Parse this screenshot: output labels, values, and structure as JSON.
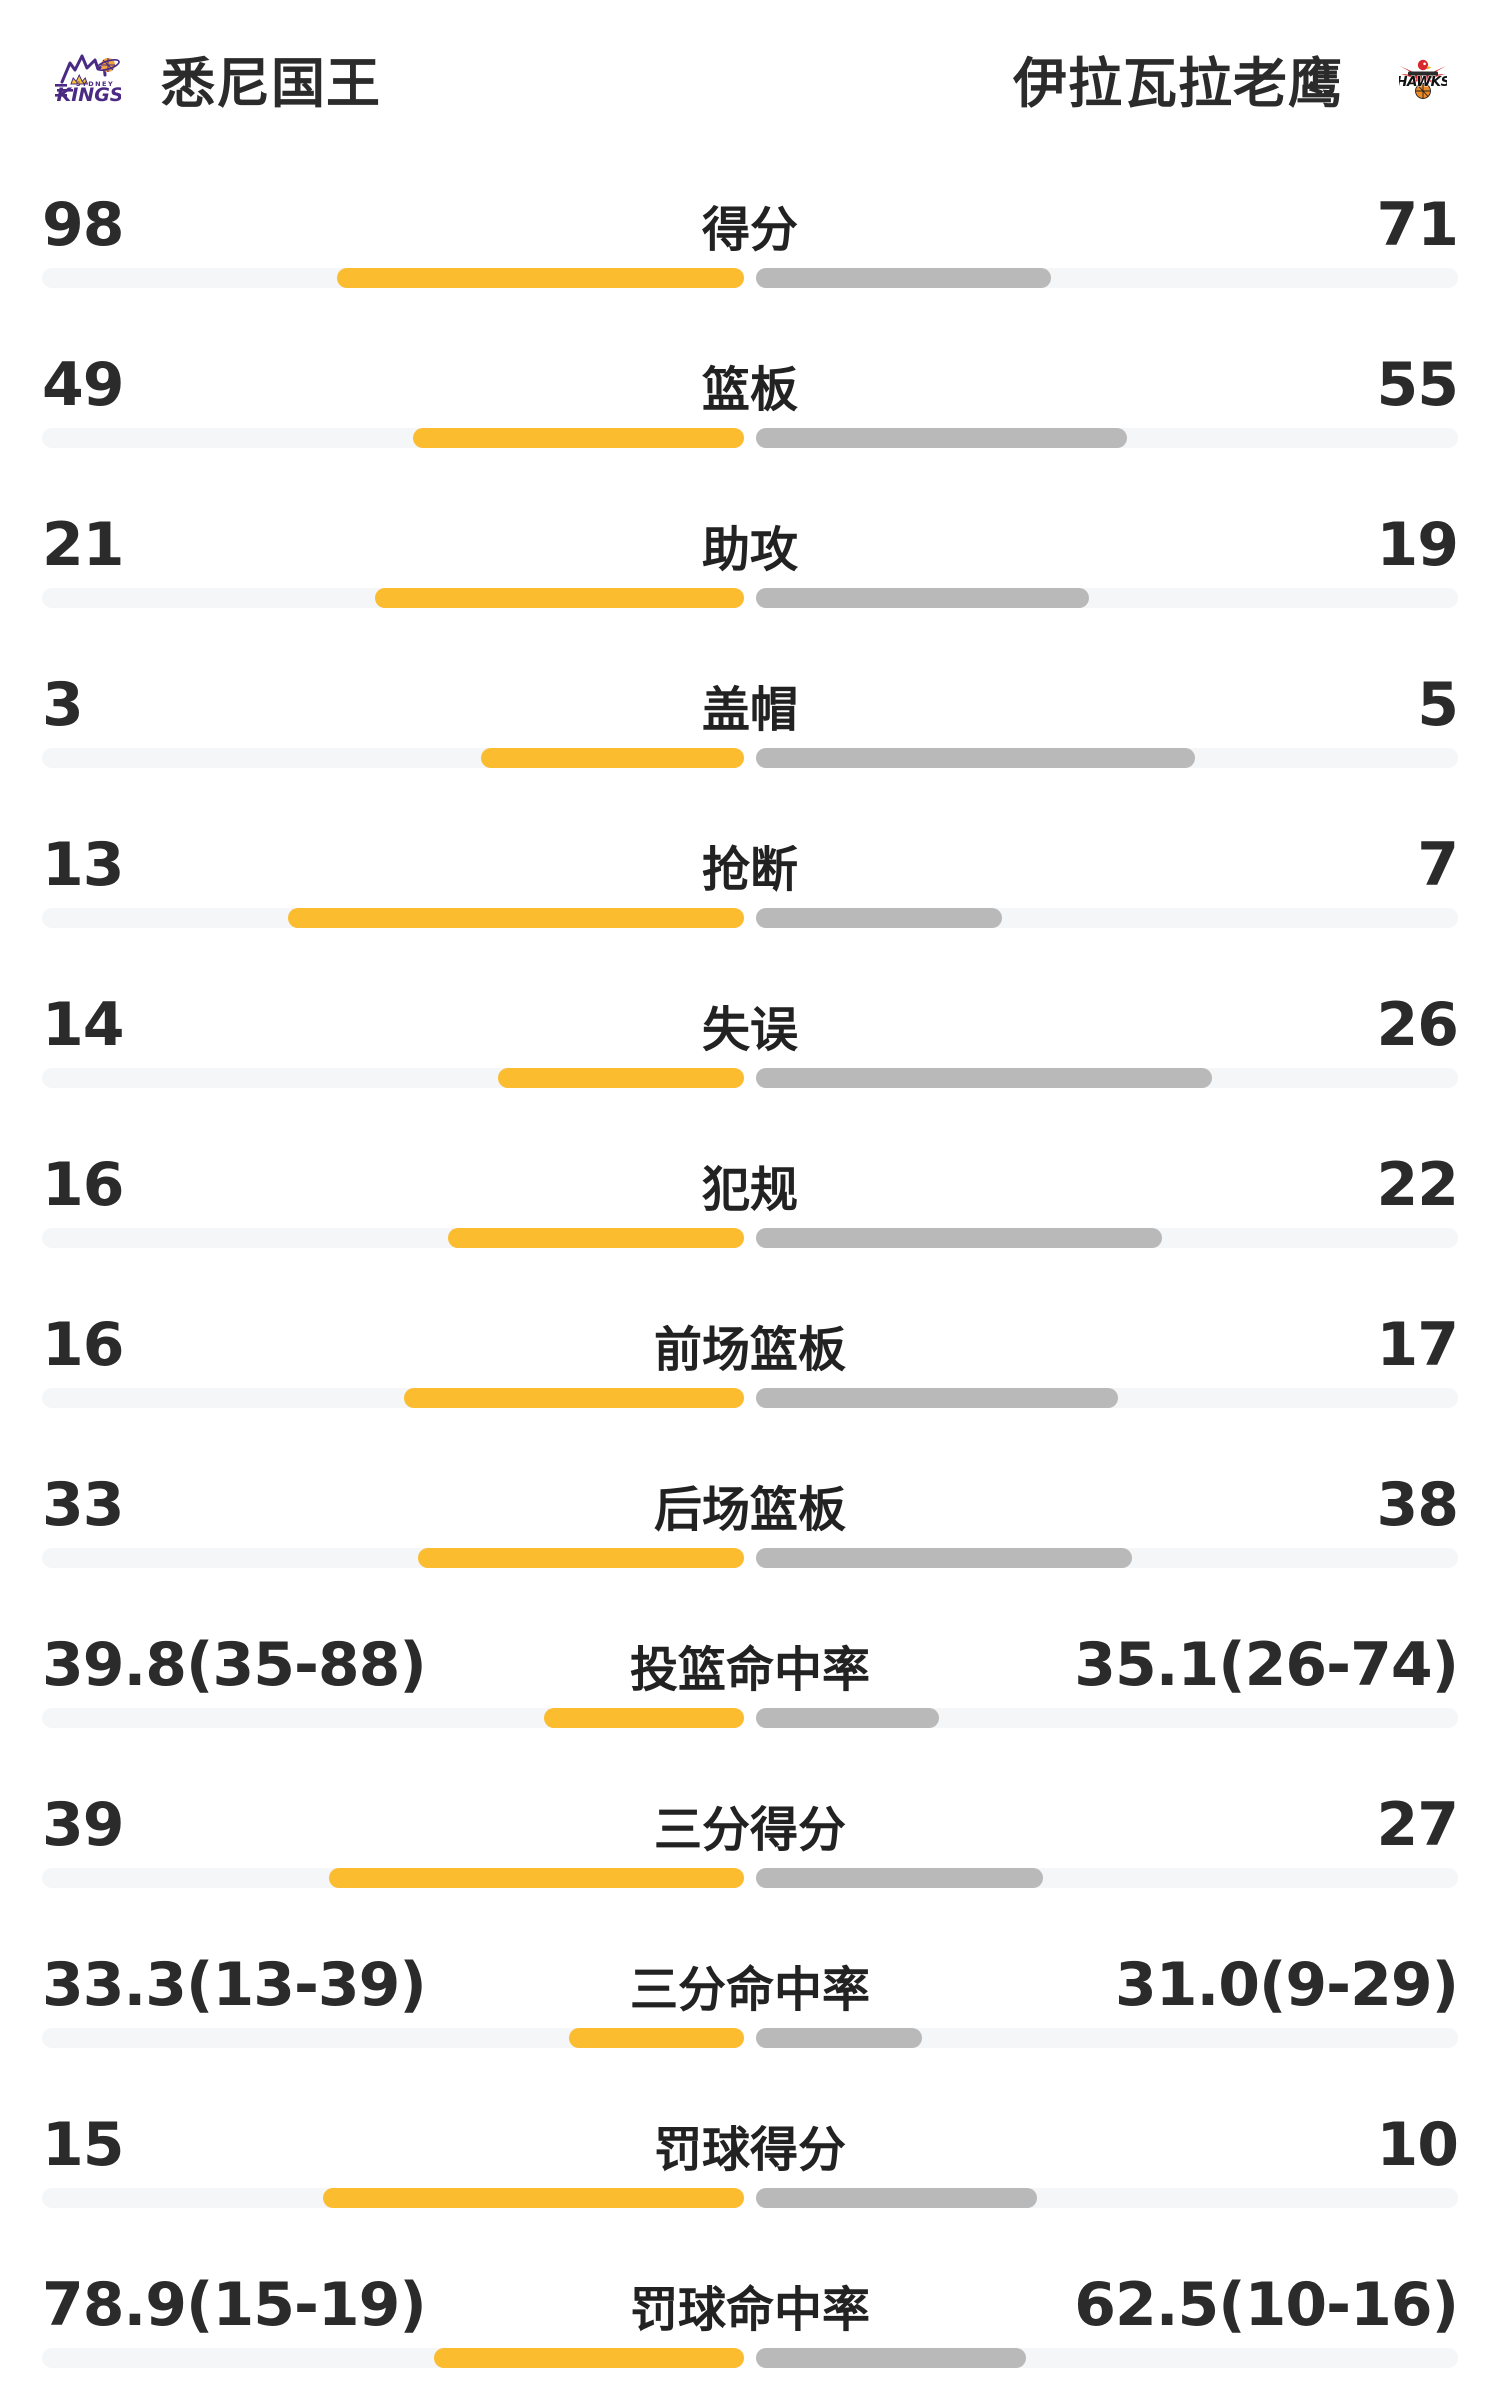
{
  "header": {
    "home": {
      "name": "悉尼国王",
      "logo_text_top": "SYDNEY",
      "logo_text_main": "KINGS"
    },
    "away": {
      "name": "伊拉瓦拉老鹰",
      "logo_text_main": "HAWKS"
    }
  },
  "colors": {
    "home_bar": "#FBBC30",
    "away_bar": "#B9B9B9",
    "bar_track": "#F5F6F8",
    "value_text": "#2B2B2B",
    "kings_purple": "#4B2A84",
    "hawks_red": "#D7282F",
    "basketball_orange": "#EE8A24"
  },
  "stats": [
    {
      "label": "得分",
      "home": "98",
      "away": "71",
      "home_pct": 58.0,
      "away_pct": 42.0
    },
    {
      "label": "篮板",
      "home": "49",
      "away": "55",
      "home_pct": 47.1,
      "away_pct": 52.9
    },
    {
      "label": "助攻",
      "home": "21",
      "away": "19",
      "home_pct": 52.5,
      "away_pct": 47.5
    },
    {
      "label": "盖帽",
      "home": "3",
      "away": "5",
      "home_pct": 37.5,
      "away_pct": 62.5
    },
    {
      "label": "抢断",
      "home": "13",
      "away": "7",
      "home_pct": 65.0,
      "away_pct": 35.0
    },
    {
      "label": "失误",
      "home": "14",
      "away": "26",
      "home_pct": 35.0,
      "away_pct": 65.0
    },
    {
      "label": "犯规",
      "home": "16",
      "away": "22",
      "home_pct": 42.1,
      "away_pct": 57.9
    },
    {
      "label": "前场篮板",
      "home": "16",
      "away": "17",
      "home_pct": 48.5,
      "away_pct": 51.5
    },
    {
      "label": "后场篮板",
      "home": "33",
      "away": "38",
      "home_pct": 46.5,
      "away_pct": 53.5
    },
    {
      "label": "投篮命中率",
      "home": "39.8(35-88)",
      "away": "35.1(26-74)",
      "home_pct": 28.5,
      "away_pct": 26.0
    },
    {
      "label": "三分得分",
      "home": "39",
      "away": "27",
      "home_pct": 59.1,
      "away_pct": 40.9
    },
    {
      "label": "三分命中率",
      "home": "33.3(13-39)",
      "away": "31.0(9-29)",
      "home_pct": 25.0,
      "away_pct": 23.7
    },
    {
      "label": "罚球得分",
      "home": "15",
      "away": "10",
      "home_pct": 60.0,
      "away_pct": 40.0
    },
    {
      "label": "罚球命中率",
      "home": "78.9(15-19)",
      "away": "62.5(10-16)",
      "home_pct": 44.1,
      "away_pct": 38.5
    }
  ]
}
